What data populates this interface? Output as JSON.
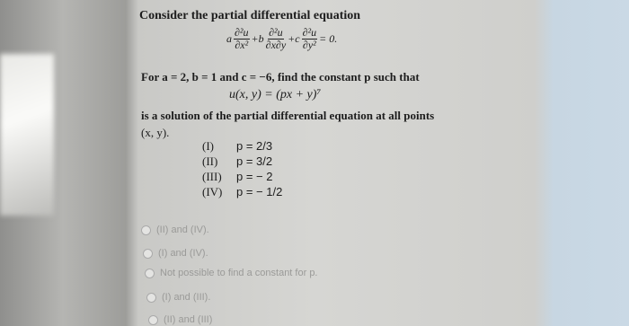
{
  "header": {
    "title": "Consider the partial differential equation"
  },
  "equation": {
    "terms": [
      {
        "coef": "a",
        "num": "∂²u",
        "den": "∂x²"
      },
      {
        "coef": "+b",
        "num": "∂²u",
        "den": "∂x∂y"
      },
      {
        "coef": "+c",
        "num": "∂²u",
        "den": "∂y²"
      }
    ],
    "rhs": "= 0."
  },
  "question": {
    "given": "For a = 2, b = 1 and c = −6, find the constant p such that",
    "solution": "u(x, y) = (px + y)⁷",
    "condition": "is a solution of the partial differential equation at all points",
    "points": "(x, y)."
  },
  "statements": [
    {
      "label": "(I)",
      "text": "p = 2/3"
    },
    {
      "label": "(II)",
      "text": "p = 3/2"
    },
    {
      "label": "(III)",
      "text": "p = − 2"
    },
    {
      "label": "(IV)",
      "text": "p = − 1/2"
    }
  ],
  "choices": [
    "(II) and (IV).",
    "(I) and (IV).",
    "Not possible to find a constant for p.",
    "(I) and (III).",
    "(II) and (III)"
  ]
}
